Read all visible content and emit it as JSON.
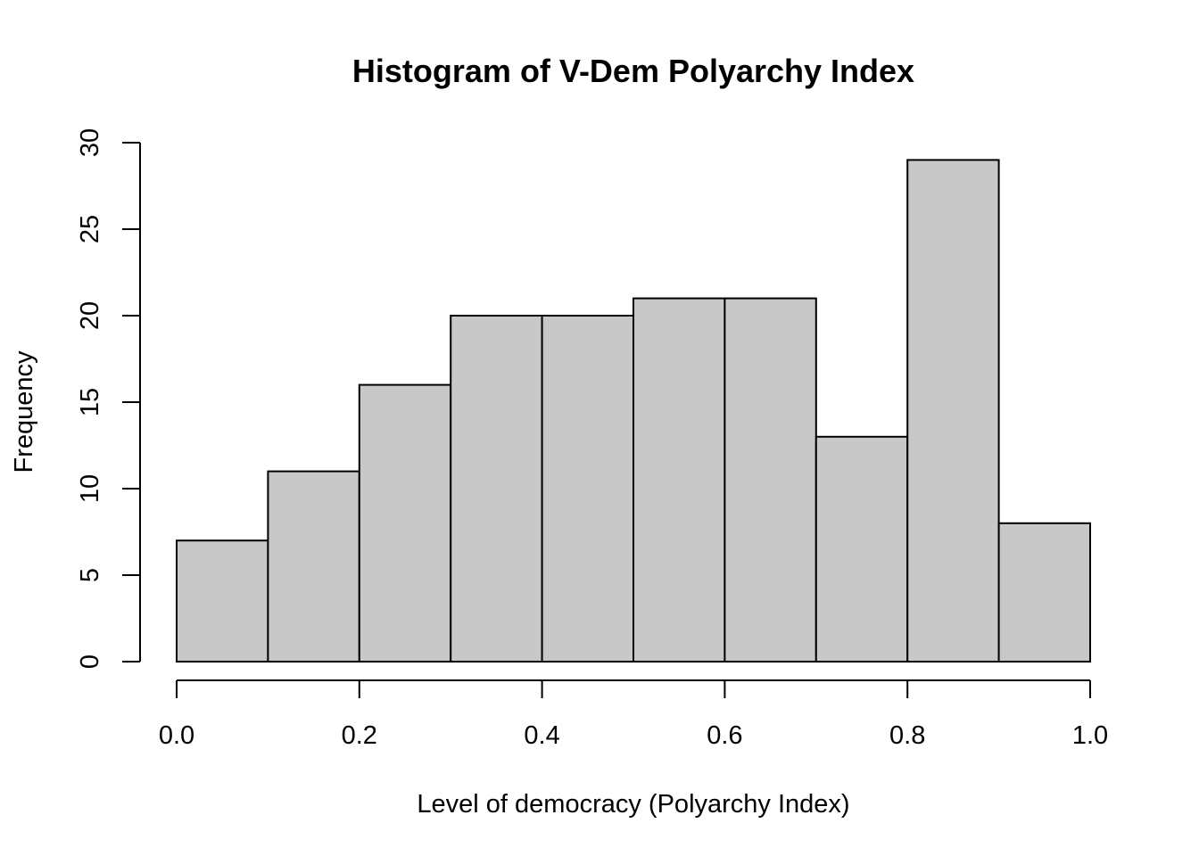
{
  "chart_data": {
    "type": "bar",
    "subtype": "histogram",
    "title": "Histogram of V-Dem Polyarchy Index",
    "xlabel": "Level of democracy (Polyarchy Index)",
    "ylabel": "Frequency",
    "bins": [
      {
        "start": 0.0,
        "end": 0.1,
        "count": 7
      },
      {
        "start": 0.1,
        "end": 0.2,
        "count": 11
      },
      {
        "start": 0.2,
        "end": 0.3,
        "count": 16
      },
      {
        "start": 0.3,
        "end": 0.4,
        "count": 20
      },
      {
        "start": 0.4,
        "end": 0.5,
        "count": 20
      },
      {
        "start": 0.5,
        "end": 0.6,
        "count": 21
      },
      {
        "start": 0.6,
        "end": 0.7,
        "count": 21
      },
      {
        "start": 0.7,
        "end": 0.8,
        "count": 13
      },
      {
        "start": 0.8,
        "end": 0.9,
        "count": 29
      },
      {
        "start": 0.9,
        "end": 1.0,
        "count": 8
      }
    ],
    "xlim": [
      0.0,
      1.0
    ],
    "ylim": [
      0,
      30
    ],
    "x_ticks": [
      "0.0",
      "0.2",
      "0.4",
      "0.6",
      "0.8",
      "1.0"
    ],
    "y_ticks": [
      "0",
      "5",
      "10",
      "15",
      "20",
      "25",
      "30"
    ],
    "bar_color": "#c8c8c8",
    "edge_color": "#000000",
    "grid": false
  }
}
